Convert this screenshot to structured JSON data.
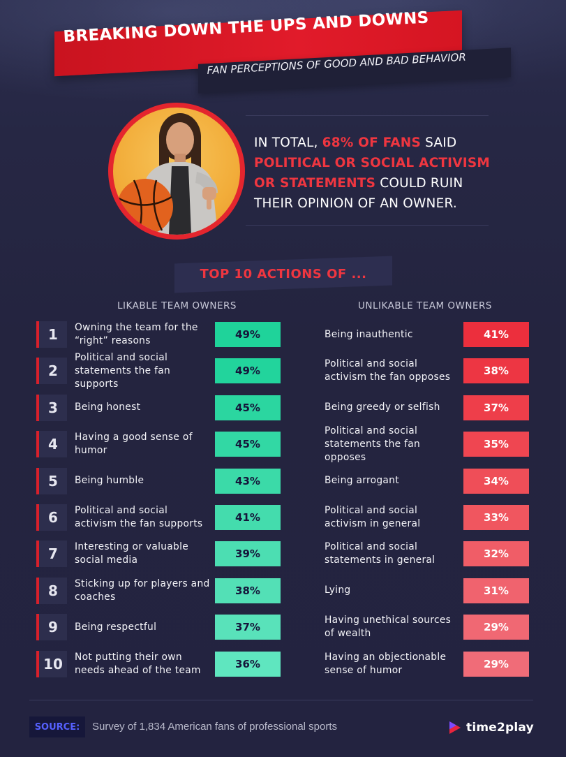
{
  "header": {
    "title": "BREAKING DOWN THE UPS AND DOWNS",
    "subtitle": "FAN PERCEPTIONS OF GOOD AND BAD BEHAVIOR"
  },
  "stat": {
    "part1": "In total, ",
    "highlight1": "68% of fans",
    "part2": " said ",
    "highlight2": "political or social activism or statements",
    "part3": " could ruin their opinion of an owner."
  },
  "section_title": "TOP 10 ACTIONS OF ...",
  "columns": {
    "likable": "LIKABLE TEAM OWNERS",
    "unlikable": "UNLIKABLE TEAM OWNERS"
  },
  "rows": [
    {
      "rank": "1",
      "likable": "Owning the team for the “right” reasons",
      "likable_pct": "49%",
      "likable_value": 49,
      "unlikable": "Being inauthentic",
      "unlikable_pct": "41%",
      "unlikable_value": 41
    },
    {
      "rank": "2",
      "likable": "Political and social statements the fan supports",
      "likable_pct": "49%",
      "likable_value": 49,
      "unlikable": "Political and social activism the fan opposes",
      "unlikable_pct": "38%",
      "unlikable_value": 38
    },
    {
      "rank": "3",
      "likable": "Being honest",
      "likable_pct": "45%",
      "likable_value": 45,
      "unlikable": "Being greedy or selfish",
      "unlikable_pct": "37%",
      "unlikable_value": 37
    },
    {
      "rank": "4",
      "likable": "Having a good sense of humor",
      "likable_pct": "45%",
      "likable_value": 45,
      "unlikable": "Political and social statements the fan opposes",
      "unlikable_pct": "35%",
      "unlikable_value": 35
    },
    {
      "rank": "5",
      "likable": "Being humble",
      "likable_pct": "43%",
      "likable_value": 43,
      "unlikable": "Being arrogant",
      "unlikable_pct": "34%",
      "unlikable_value": 34
    },
    {
      "rank": "6",
      "likable": "Political and social activism the fan supports",
      "likable_pct": "41%",
      "likable_value": 41,
      "unlikable": "Political and social activism in general",
      "unlikable_pct": "33%",
      "unlikable_value": 33
    },
    {
      "rank": "7",
      "likable": "Interesting or valuable social media",
      "likable_pct": "39%",
      "likable_value": 39,
      "unlikable": "Political and social statements in general",
      "unlikable_pct": "32%",
      "unlikable_value": 32
    },
    {
      "rank": "8",
      "likable": "Sticking up for players and coaches",
      "likable_pct": "38%",
      "likable_value": 38,
      "unlikable": "Lying",
      "unlikable_pct": "31%",
      "unlikable_value": 31
    },
    {
      "rank": "9",
      "likable": "Being respectful",
      "likable_pct": "37%",
      "likable_value": 37,
      "unlikable": "Having unethical sources of wealth",
      "unlikable_pct": "29%",
      "unlikable_value": 29
    },
    {
      "rank": "10",
      "likable": "Not putting their own needs ahead of the team",
      "likable_pct": "36%",
      "likable_value": 36,
      "unlikable": "Having an objectionable sense of humor",
      "unlikable_pct": "29%",
      "unlikable_value": 29
    }
  ],
  "footer": {
    "source_label": "SOURCE:",
    "source_text": "Survey of 1,834 American fans of professional sports",
    "logo_text": "time2play"
  },
  "colors": {
    "accent_red": "#e11b2a",
    "green_strong": "#1fd39a",
    "green_light": "#5fe6bf",
    "red_strong": "#ec2f3d",
    "red_light": "#f06c78"
  },
  "icons": {
    "thumbs_down": "thumbs-down-icon",
    "logo_mark": "time2play-logo-icon"
  }
}
